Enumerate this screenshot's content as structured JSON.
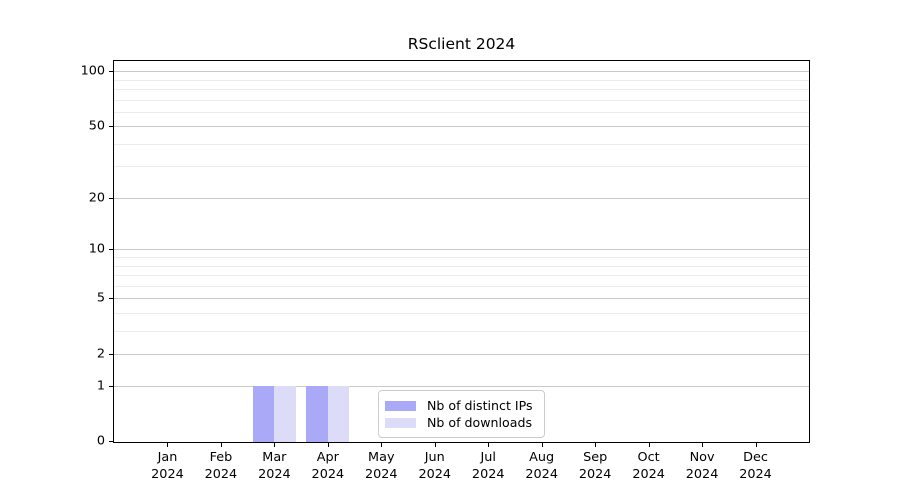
{
  "chart_data": {
    "type": "bar",
    "title": "RSclient 2024",
    "categories": [
      "Jan",
      "Feb",
      "Mar",
      "Apr",
      "May",
      "Jun",
      "Jul",
      "Aug",
      "Sep",
      "Oct",
      "Nov",
      "Dec"
    ],
    "category_year": "2024",
    "series": [
      {
        "name": "Nb of distinct IPs",
        "color": "#a9a9f8",
        "values": [
          0,
          0,
          1,
          1,
          0,
          0,
          0,
          0,
          0,
          0,
          0,
          0
        ]
      },
      {
        "name": "Nb of downloads",
        "color": "#dcdcf8",
        "values": [
          0,
          0,
          1,
          1,
          0,
          0,
          0,
          0,
          0,
          0,
          0,
          0
        ]
      }
    ],
    "xlabel": "",
    "ylabel": "",
    "y_scale": "log1p",
    "y_max": 114,
    "y_ticks": [
      0,
      1,
      2,
      5,
      10,
      20,
      50,
      100
    ],
    "y_minor_ticks": [
      3,
      4,
      6,
      7,
      8,
      9,
      30,
      40,
      60,
      70,
      80,
      90
    ],
    "grid": "horizontal",
    "legend_position": "lower center-right inside plot",
    "bar_width_fraction": 0.4,
    "colors": {
      "major_grid": "#c9c9c9",
      "minor_grid": "#ebebeb",
      "axis": "#000000",
      "background": "#ffffff"
    }
  },
  "legend": {
    "entries": [
      {
        "label": "Nb of distinct IPs"
      },
      {
        "label": "Nb of downloads"
      }
    ]
  }
}
